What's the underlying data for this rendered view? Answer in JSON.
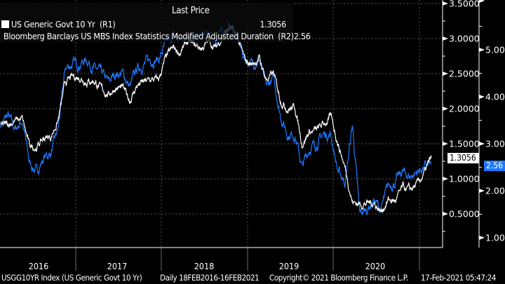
{
  "chart_data": {
    "type": "line",
    "title": "Last Price",
    "x_start": "2016-02-18",
    "x_end": "2021-02-16",
    "x_frequency": "monthly (approx.)",
    "year_labels": [
      "2016",
      "2017",
      "2018",
      "2019",
      "2020"
    ],
    "axes": {
      "R1": {
        "ticks": [
          "3.5000",
          "3.0000",
          "2.5000",
          "2.0000",
          "1.5000",
          "1.0000",
          "0.5000"
        ],
        "range": [
          0.0,
          3.55
        ]
      },
      "R2": {
        "ticks": [
          "5.00",
          "4.00",
          "3.00",
          "2.00",
          "1.00"
        ],
        "range": [
          0.7,
          6.05
        ]
      }
    },
    "series": [
      {
        "name": "US Generic Govt 10 Yr  (R1)",
        "axis": "R1",
        "color": "#ffffff",
        "last": "1.3056",
        "values": [
          1.75,
          1.78,
          1.83,
          1.85,
          1.47,
          1.45,
          1.58,
          1.6,
          1.83,
          2.37,
          2.45,
          2.45,
          2.39,
          2.4,
          2.28,
          2.2,
          2.3,
          2.29,
          2.12,
          2.33,
          2.38,
          2.41,
          2.41,
          2.72,
          2.86,
          2.8,
          2.95,
          2.9,
          2.86,
          2.96,
          2.86,
          3.06,
          3.15,
          3.01,
          2.69,
          2.63,
          2.72,
          2.41,
          2.5,
          2.13,
          2.0,
          2.02,
          1.5,
          1.67,
          1.69,
          1.78,
          1.88,
          1.51,
          1.15,
          0.67,
          0.64,
          0.65,
          0.66,
          0.53,
          0.7,
          0.68,
          0.87,
          0.84,
          0.91,
          1.07,
          1.3056
        ]
      },
      {
        "name": "Bloomberg Barclays US MBS Index Statistics Modified Adjusted Duration  (R2)",
        "axis": "R2",
        "color": "#1e78ff",
        "last": "2.56",
        "values": [
          3.4,
          3.6,
          3.3,
          3.5,
          2.6,
          2.4,
          2.7,
          2.8,
          3.3,
          4.6,
          4.7,
          4.7,
          4.8,
          4.6,
          4.5,
          4.3,
          4.5,
          4.5,
          4.2,
          4.6,
          4.7,
          4.8,
          4.8,
          5.1,
          5.3,
          5.2,
          5.4,
          5.2,
          5.3,
          5.3,
          5.2,
          5.4,
          5.5,
          5.2,
          4.8,
          4.7,
          4.8,
          4.2,
          4.4,
          3.6,
          3.2,
          3.2,
          2.5,
          2.9,
          3.0,
          3.2,
          3.2,
          2.4,
          2.2,
          3.4,
          1.5,
          1.6,
          1.8,
          1.6,
          2.1,
          2.2,
          2.4,
          2.3,
          2.4,
          2.5,
          2.56
        ]
      }
    ]
  },
  "legend": {
    "header": "Last Price"
  },
  "footer": {
    "ticker": "USGG10YR Index (US Generic Govt 10 Yr)",
    "range": "Daily 18FEB2016-16FEB2021",
    "copyright": "Copyright© 2021 Bloomberg Finance L.P.",
    "timestamp": "17-Feb-2021 05:47:24"
  }
}
